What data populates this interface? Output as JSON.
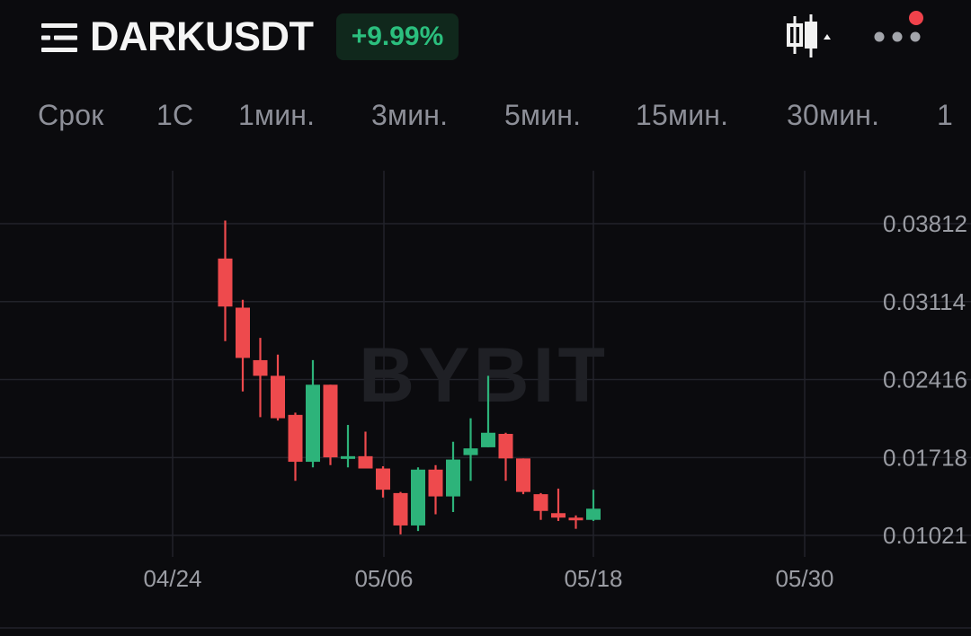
{
  "header": {
    "symbol": "DARKUSDT",
    "change": "+9.99%",
    "change_color": "#2bbf7e",
    "icons": [
      "menu-icon",
      "candlestick-settings-icon",
      "more-icon"
    ],
    "notification_dot_color": "#f0424b"
  },
  "timeframes": {
    "label": "Срок",
    "items": [
      "1С",
      "1мин.",
      "3мин.",
      "5мин.",
      "15мин.",
      "30мин.",
      "1"
    ]
  },
  "watermark": "BYBIT",
  "chart_data": {
    "type": "candlestick",
    "x_ticks": [
      "04/24",
      "05/06",
      "05/18",
      "05/30"
    ],
    "y_ticks": [
      "0.03812",
      "0.03114",
      "0.02416",
      "0.01718",
      "0.01021"
    ],
    "y_tick_values": [
      0.03812,
      0.03114,
      0.02416,
      0.01718,
      0.01021
    ],
    "colors": {
      "up": "#2db37a",
      "down": "#ee4a4d"
    },
    "grid": true,
    "candles": [
      {
        "date": "04/27",
        "open": 0.035,
        "high": 0.0384,
        "low": 0.0276,
        "close": 0.0307
      },
      {
        "date": "04/28",
        "open": 0.0306,
        "high": 0.0313,
        "low": 0.0231,
        "close": 0.0261
      },
      {
        "date": "04/29",
        "open": 0.0259,
        "high": 0.0279,
        "low": 0.0208,
        "close": 0.0245
      },
      {
        "date": "04/30",
        "open": 0.0245,
        "high": 0.0264,
        "low": 0.0205,
        "close": 0.0207
      },
      {
        "date": "05/01",
        "open": 0.021,
        "high": 0.0212,
        "low": 0.0151,
        "close": 0.0168
      },
      {
        "date": "05/02",
        "open": 0.0168,
        "high": 0.0259,
        "low": 0.0163,
        "close": 0.0237
      },
      {
        "date": "05/03",
        "open": 0.0237,
        "high": 0.0237,
        "low": 0.0165,
        "close": 0.0172
      },
      {
        "date": "05/04",
        "open": 0.0172,
        "high": 0.0201,
        "low": 0.0163,
        "close": 0.0173
      },
      {
        "date": "05/05",
        "open": 0.0173,
        "high": 0.0195,
        "low": 0.0163,
        "close": 0.0162
      },
      {
        "date": "05/06",
        "open": 0.0162,
        "high": 0.0164,
        "low": 0.0136,
        "close": 0.0143
      },
      {
        "date": "05/07",
        "open": 0.014,
        "high": 0.0141,
        "low": 0.0103,
        "close": 0.0111
      },
      {
        "date": "05/08",
        "open": 0.0111,
        "high": 0.0163,
        "low": 0.0106,
        "close": 0.0161
      },
      {
        "date": "05/09",
        "open": 0.0161,
        "high": 0.0165,
        "low": 0.0121,
        "close": 0.0137
      },
      {
        "date": "05/10",
        "open": 0.0137,
        "high": 0.0186,
        "low": 0.0123,
        "close": 0.017
      },
      {
        "date": "05/11",
        "open": 0.0174,
        "high": 0.0207,
        "low": 0.0151,
        "close": 0.018
      },
      {
        "date": "05/12",
        "open": 0.0181,
        "high": 0.0245,
        "low": 0.0181,
        "close": 0.0194
      },
      {
        "date": "05/13",
        "open": 0.0193,
        "high": 0.0194,
        "low": 0.0151,
        "close": 0.0171
      },
      {
        "date": "05/14",
        "open": 0.0171,
        "high": 0.0171,
        "low": 0.0139,
        "close": 0.0141
      },
      {
        "date": "05/15",
        "open": 0.0139,
        "high": 0.014,
        "low": 0.0116,
        "close": 0.0124
      },
      {
        "date": "05/16",
        "open": 0.0122,
        "high": 0.0144,
        "low": 0.0115,
        "close": 0.0118
      },
      {
        "date": "05/17",
        "open": 0.0118,
        "high": 0.012,
        "low": 0.0108,
        "close": 0.0116
      },
      {
        "date": "05/18",
        "open": 0.0116,
        "high": 0.0143,
        "low": 0.0115,
        "close": 0.0126
      }
    ]
  }
}
